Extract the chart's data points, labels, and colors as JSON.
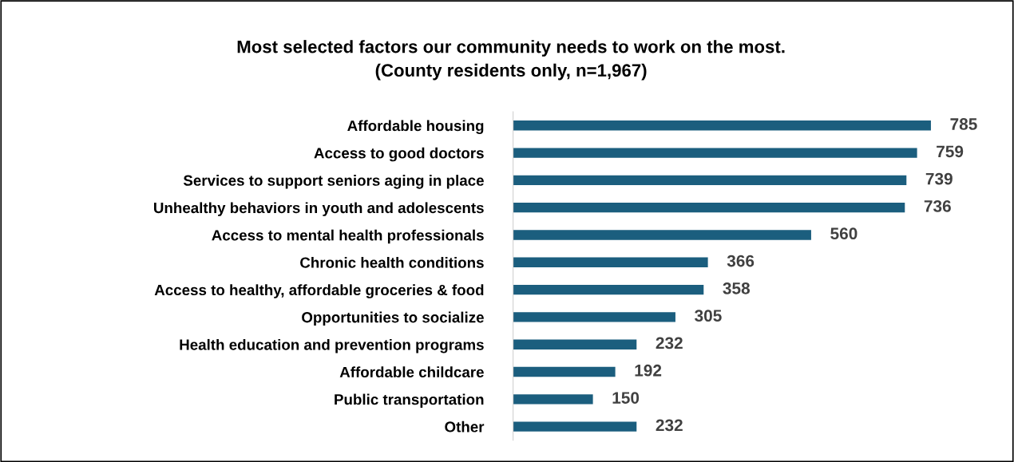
{
  "chart_data": {
    "type": "bar",
    "orientation": "horizontal",
    "title": "Most selected factors our community needs to work on the most.\n(County residents only, n=1,967)",
    "categories": [
      "Affordable housing",
      "Access to good doctors",
      "Services to support seniors aging in place",
      "Unhealthy behaviors in youth and adolescents",
      "Access to mental health professionals",
      "Chronic health conditions",
      "Access to healthy, affordable groceries & food",
      "Opportunities to socialize",
      "Health education and prevention programs",
      "Affordable childcare",
      "Public transportation",
      "Other"
    ],
    "values": [
      785,
      759,
      739,
      736,
      560,
      366,
      358,
      305,
      232,
      192,
      150,
      232
    ],
    "color": "#1b5e7e",
    "data_labels": true,
    "grid": false,
    "legend": false
  }
}
